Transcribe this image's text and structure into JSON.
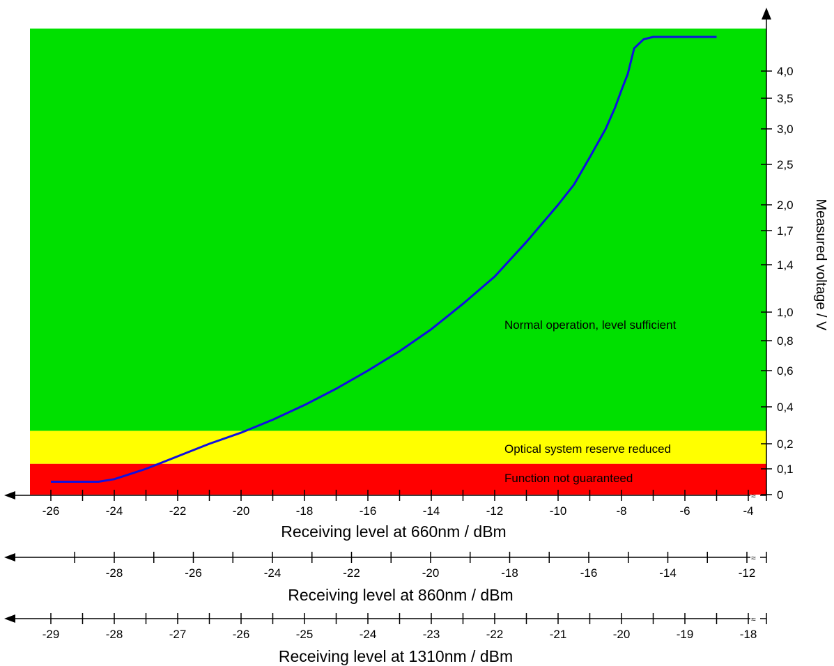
{
  "chart_data": {
    "type": "line",
    "ylabel": "Measured voltage / V",
    "y_ticks": [
      {
        "value": 4.0,
        "label": "4,0"
      },
      {
        "value": 3.5,
        "label": "3,5"
      },
      {
        "value": 3.0,
        "label": "3,0"
      },
      {
        "value": 2.5,
        "label": "2,5"
      },
      {
        "value": 2.0,
        "label": "2,0"
      },
      {
        "value": 1.7,
        "label": "1,7"
      },
      {
        "value": 1.4,
        "label": "1,4"
      },
      {
        "value": 1.0,
        "label": "1,0"
      },
      {
        "value": 0.8,
        "label": "0,8"
      },
      {
        "value": 0.6,
        "label": "0,6"
      },
      {
        "value": 0.4,
        "label": "0,4"
      },
      {
        "value": 0.2,
        "label": "0,2"
      },
      {
        "value": 0.1,
        "label": "0,1"
      },
      {
        "value": 0.0,
        "label": "0"
      }
    ],
    "zones": [
      {
        "label": "Normal operation, level sufficient",
        "from": 0.27,
        "to": 5.0,
        "color": "#00e000"
      },
      {
        "label": "Optical system reserve reduced",
        "from": 0.12,
        "to": 0.27,
        "color": "#ffff00"
      },
      {
        "label": "Function not guaranteed",
        "from": 0.0,
        "to": 0.12,
        "color": "#ff0000"
      }
    ],
    "x_axes": [
      {
        "title": "Receiving level at 660nm / dBm",
        "ticks": [
          "-26",
          "-24",
          "-22",
          "-20",
          "-18",
          "-16",
          "-14",
          "-12",
          "-10",
          "-8",
          "-6",
          "-4"
        ]
      },
      {
        "title": "Receiving level at 860nm / dBm",
        "ticks": [
          "-28",
          "-26",
          "-24",
          "-22",
          "-20",
          "-18",
          "-16",
          "-14",
          "-12"
        ]
      },
      {
        "title": "Receiving level at 1310nm / dBm",
        "ticks": [
          "-29",
          "-28",
          "-27",
          "-26",
          "-25",
          "-24",
          "-23",
          "-22",
          "-21",
          "-20",
          "-19",
          "-18"
        ]
      }
    ],
    "series": [
      {
        "color": "#1010e0",
        "x": [
          -26,
          -25,
          -24.5,
          -24,
          -23.5,
          -23,
          -22,
          -21,
          -20,
          -19,
          -18,
          -17,
          -16,
          -15,
          -14,
          -13,
          -12,
          -11,
          -10,
          -9.5,
          -9,
          -8.5,
          -8.2,
          -8,
          -7.8,
          -7.6,
          -7.3,
          -7,
          -6,
          -5
        ],
        "y": [
          0.05,
          0.05,
          0.05,
          0.06,
          0.08,
          0.1,
          0.15,
          0.2,
          0.26,
          0.33,
          0.41,
          0.5,
          0.6,
          0.73,
          0.88,
          1.07,
          1.3,
          1.6,
          2.0,
          2.25,
          2.6,
          3.0,
          3.35,
          3.65,
          3.95,
          4.2,
          4.28,
          4.3,
          4.3,
          4.3
        ]
      }
    ]
  }
}
